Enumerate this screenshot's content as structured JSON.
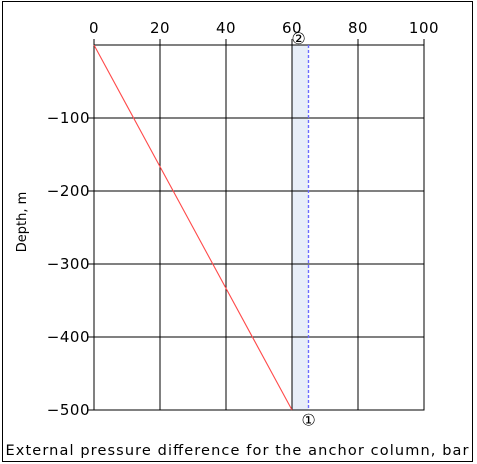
{
  "chart_data": {
    "type": "line",
    "title": "",
    "xlabel": "External pressure difference for the anchor column, bar",
    "ylabel": "Depth,  m",
    "xlim": [
      0,
      100
    ],
    "ylim": [
      -500,
      0
    ],
    "x_ticks": [
      0,
      20,
      40,
      60,
      80,
      100
    ],
    "y_ticks": [
      -100,
      -200,
      -300,
      -400,
      -500
    ],
    "x_tick_labels": [
      "0",
      "20",
      "40",
      "60",
      "80",
      "100"
    ],
    "y_tick_labels": [
      "−100",
      "−200",
      "−300",
      "−400",
      "−500"
    ],
    "x_axis_position": "top",
    "grid": true,
    "series": [
      {
        "color": "#ff4a4a",
        "style": "solid",
        "x": [
          0,
          60
        ],
        "y": [
          0,
          -500
        ]
      },
      {
        "color": "#6b6bff",
        "style": "dashed",
        "x": [
          65,
          65
        ],
        "y": [
          0,
          -500
        ]
      }
    ],
    "annotations": [
      {
        "text": "①",
        "x": 65,
        "y": -510
      },
      {
        "text": "②",
        "x": 62,
        "y": 12
      }
    ],
    "shaded_band": {
      "x": [
        60,
        65
      ],
      "color": "#e8eef8"
    }
  }
}
